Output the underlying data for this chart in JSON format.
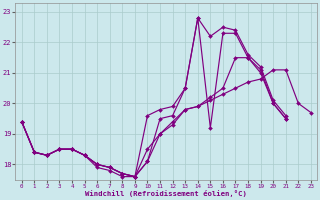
{
  "background_color": "#cce8ec",
  "line_color": "#800080",
  "grid_color": "#aacccc",
  "xlim": [
    -0.5,
    23.5
  ],
  "ylim": [
    17.5,
    23.3
  ],
  "xticks": [
    0,
    1,
    2,
    3,
    4,
    5,
    6,
    7,
    8,
    9,
    10,
    11,
    12,
    13,
    14,
    15,
    16,
    17,
    18,
    19,
    20,
    21,
    22,
    23
  ],
  "yticks": [
    18,
    19,
    20,
    21,
    22,
    23
  ],
  "xlabel": "Windchill (Refroidissement éolien,°C)",
  "line1": [
    19.4,
    18.4,
    18.3,
    18.5,
    18.5,
    18.3,
    17.9,
    17.8,
    17.6,
    17.6,
    18.1,
    19.5,
    19.6,
    20.5,
    22.8,
    19.2,
    22.3,
    22.3,
    21.5,
    21.1,
    20.0,
    19.5,
    null,
    null
  ],
  "line2": [
    19.4,
    18.4,
    18.3,
    18.5,
    18.5,
    18.3,
    18.0,
    17.9,
    17.7,
    17.6,
    18.5,
    19.0,
    19.3,
    19.8,
    19.9,
    20.1,
    20.3,
    20.5,
    20.7,
    20.8,
    21.1,
    21.1,
    20.0,
    19.7
  ],
  "line3": [
    19.4,
    18.4,
    18.3,
    18.5,
    18.5,
    18.3,
    18.0,
    17.9,
    17.7,
    17.6,
    19.6,
    19.8,
    19.9,
    20.5,
    22.8,
    22.2,
    22.5,
    22.4,
    21.6,
    21.2,
    20.1,
    19.6,
    null,
    null
  ],
  "line4": [
    19.4,
    18.4,
    18.3,
    18.5,
    18.5,
    18.3,
    18.0,
    17.9,
    17.7,
    17.6,
    18.1,
    19.0,
    19.4,
    19.8,
    19.9,
    20.2,
    20.5,
    21.5,
    21.5,
    21.0,
    20.0,
    19.5,
    null,
    null
  ]
}
